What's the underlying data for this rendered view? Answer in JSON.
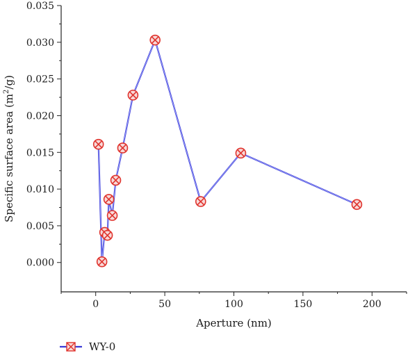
{
  "chart_data": {
    "type": "line",
    "xlabel": "Aperture (nm)",
    "ylabel": {
      "prefix": "Specific surface area (m",
      "sup": "2",
      "suffix": "/g)"
    },
    "xlim": [
      -25,
      225
    ],
    "ylim": [
      -0.004,
      0.035
    ],
    "xticks": [
      0,
      50,
      100,
      150,
      200
    ],
    "xtick_labels": [
      "0",
      "50",
      "100",
      "150",
      "200"
    ],
    "yticks": [
      0.0,
      0.005,
      0.01,
      0.015,
      0.02,
      0.025,
      0.03,
      0.035
    ],
    "ytick_labels": [
      "0.000",
      "0.005",
      "0.010",
      "0.015",
      "0.020",
      "0.025",
      "0.030",
      "0.035"
    ],
    "grid": false,
    "legend_position": "bottom-left",
    "series": [
      {
        "name": "WY-0",
        "line_color": "#3b3bd6",
        "marker_color": "#e0342e",
        "marker": "circle-x",
        "x": [
          2,
          4.5,
          6.5,
          8.5,
          9.5,
          12,
          14.5,
          19.5,
          27,
          43,
          76,
          105,
          189
        ],
        "y": [
          0.0161,
          0.0001,
          0.0041,
          0.0037,
          0.0086,
          0.0064,
          0.0112,
          0.0156,
          0.0228,
          0.0303,
          0.0083,
          0.0149,
          0.0079
        ]
      }
    ]
  }
}
